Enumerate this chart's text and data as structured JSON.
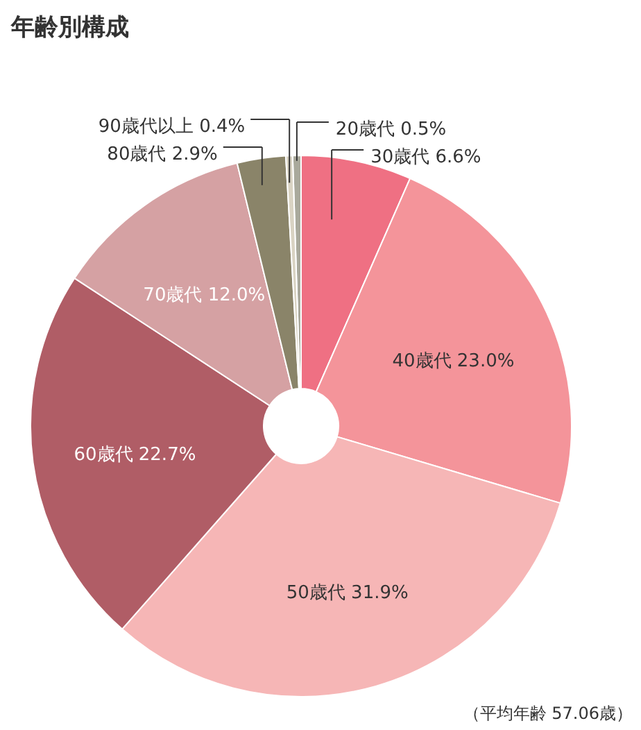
{
  "chart_data": {
    "type": "donut",
    "title": "年齢別構成",
    "categories": [
      "20歳代",
      "30歳代",
      "40歳代",
      "50歳代",
      "60歳代",
      "70歳代",
      "80歳代",
      "90歳代以上"
    ],
    "values": [
      0.5,
      6.6,
      23.0,
      31.9,
      22.7,
      12.0,
      2.9,
      0.4
    ],
    "value_labels": [
      "0.5%",
      "6.6%",
      "23.0%",
      "31.9%",
      "22.7%",
      "12.0%",
      "2.9%",
      "0.4%"
    ],
    "colors": [
      "#a9a99c",
      "#ef7083",
      "#f4949a",
      "#f6b6b6",
      "#b05d66",
      "#d5a1a3",
      "#8a8469",
      "#d9d3c3"
    ],
    "annotations": [
      "（平均年齢 57.06歳）"
    ]
  }
}
